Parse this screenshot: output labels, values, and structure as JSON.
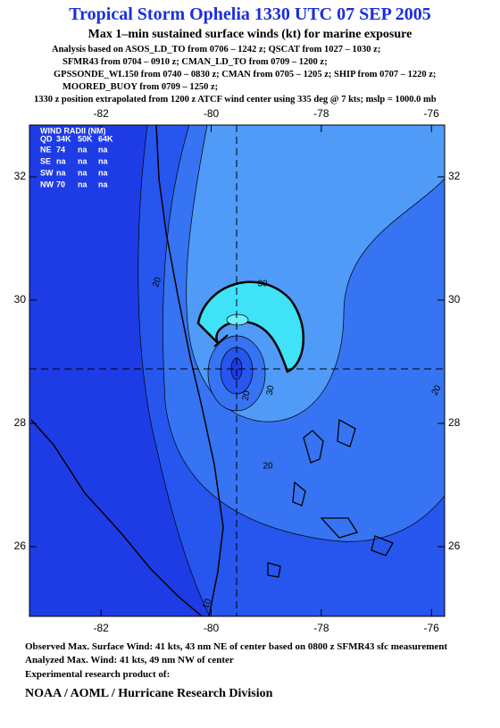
{
  "header": {
    "title": "Tropical Storm Ophelia 1330 UTC 07 SEP 2005",
    "subtitle": "Max 1–min sustained surface winds (kt) for marine exposure",
    "analysis_lines": [
      "Analysis based on  ASOS_LD_TO from 0706 – 1242 z;  QSCAT from 1027 – 1030 z;",
      "SFMR43 from 0704 – 0910 z;  CMAN_LD_TO from 0709 – 1200 z;",
      "GPSSONDE_WL150 from 0740 – 0830 z;  CMAN from 0705 – 1205 z;  SHIP from 0707 – 1220 z;",
      "MOORED_BUOY from 0709 – 1250 z;"
    ],
    "position_note": "1330 z position extrapolated from 1200 z ATCF wind center using 335 deg @ 7 kts; mslp = 1000.0 mb"
  },
  "map": {
    "xlim": [
      -83.3,
      -75.76
    ],
    "ylim": [
      24.87,
      32.84
    ],
    "xticks": [
      -82,
      -80,
      -78,
      -76
    ],
    "yticks": [
      26,
      28,
      30,
      32
    ]
  },
  "wind_radii": {
    "title": "WIND RADII (NM)",
    "header": [
      "QD",
      "34K",
      "50K",
      "64K"
    ],
    "rows": [
      [
        "NE",
        "74",
        "na",
        "na"
      ],
      [
        "SE",
        "na",
        "na",
        "na"
      ],
      [
        "SW",
        "na",
        "na",
        "na"
      ],
      [
        "NW",
        "70",
        "na",
        "na"
      ]
    ]
  },
  "contour_labels": [
    "30",
    "20",
    "20",
    "30",
    "20",
    "20",
    "10"
  ],
  "footer": {
    "lines": [
      "Observed Max. Surface Wind: 41 kts, 43 nm NE of center based on 0800 z SFMR43 sfc measurement",
      "Analyzed Max. Wind: 41 kts, 49 nm NW of center",
      "Experimental research product of:"
    ],
    "credit": "NOAA / AOML / Hurricane Research Division"
  }
}
